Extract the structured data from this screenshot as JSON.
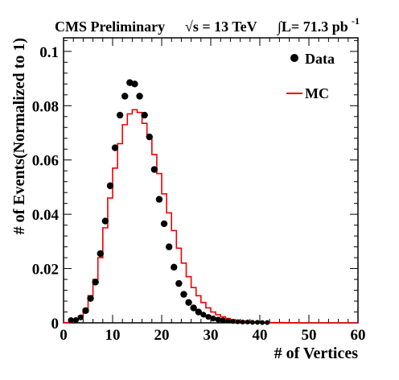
{
  "header": {
    "experiment": "CMS Preliminary",
    "energy_prefix": "√s = 13 TeV",
    "lumi_prefix": "∫L= 71.3 pb",
    "lumi_exponent": "-1"
  },
  "chart_data": {
    "type": "scatter",
    "xlabel": "# of Vertices",
    "ylabel": "# of Events(Normalized to 1)",
    "xlim": [
      0,
      60
    ],
    "ylim": [
      0,
      0.105
    ],
    "xticks": [
      0,
      10,
      20,
      30,
      40,
      50,
      60
    ],
    "xtick_labels": [
      "0",
      "10",
      "20",
      "30",
      "40",
      "50",
      "60"
    ],
    "yticks": [
      0,
      0.02,
      0.04,
      0.06,
      0.08,
      0.1
    ],
    "ytick_labels": [
      "0",
      "0.02",
      "0.04",
      "0.06",
      "0.08",
      "0.1"
    ],
    "legend_position": "top-right",
    "legend": [
      {
        "label": "Data",
        "marker": "circle",
        "color": "#000000"
      },
      {
        "label": "MC",
        "marker": "line",
        "color": "#ee0000"
      }
    ],
    "series": [
      {
        "name": "Data",
        "style": "markers",
        "color": "#000000",
        "x": [
          1.5,
          2.5,
          3.5,
          4.5,
          5.5,
          6.5,
          7.5,
          8.5,
          9.5,
          10.5,
          11.5,
          12.5,
          13.5,
          14.5,
          15.5,
          16.5,
          17.5,
          18.5,
          19.5,
          20.5,
          21.5,
          22.5,
          23.5,
          24.5,
          25.5,
          26.5,
          27.5,
          28.5,
          29.5,
          30.5,
          31.5,
          32.5,
          33.5,
          34.5,
          35.5,
          36.5,
          37.5,
          38.5,
          39.5,
          40.5,
          41.5
        ],
        "y": [
          0.001,
          0.001,
          0.002,
          0.0045,
          0.009,
          0.015,
          0.0255,
          0.0375,
          0.0505,
          0.0645,
          0.0765,
          0.0835,
          0.0885,
          0.088,
          0.0835,
          0.0765,
          0.0685,
          0.0565,
          0.0455,
          0.0365,
          0.028,
          0.0205,
          0.0145,
          0.0105,
          0.0075,
          0.0055,
          0.004,
          0.003,
          0.0022,
          0.0016,
          0.0012,
          0.0009,
          0.0007,
          0.0005,
          0.0004,
          0.0003,
          0.0003,
          0.0002,
          0.0002,
          0.0001,
          0.0001
        ]
      },
      {
        "name": "MC",
        "style": "step",
        "color": "#ee0000",
        "bin_width": 1,
        "x_start": 0,
        "y": [
          0.0001,
          0.0003,
          0.0008,
          0.0025,
          0.005,
          0.01,
          0.016,
          0.024,
          0.035,
          0.046,
          0.057,
          0.066,
          0.073,
          0.077,
          0.0785,
          0.0775,
          0.0735,
          0.0685,
          0.062,
          0.055,
          0.0475,
          0.0405,
          0.034,
          0.0275,
          0.022,
          0.017,
          0.013,
          0.01,
          0.0075,
          0.0055,
          0.004,
          0.003,
          0.0022,
          0.0016,
          0.0012,
          0.0009,
          0.0007,
          0.0005,
          0.0004,
          0.0003,
          0.0002,
          0.0002,
          0.0001,
          0.0001,
          0.0001,
          5e-05,
          5e-05,
          5e-05,
          0,
          0,
          0,
          0,
          0,
          0,
          0,
          0,
          0,
          0,
          0,
          0
        ]
      }
    ]
  }
}
